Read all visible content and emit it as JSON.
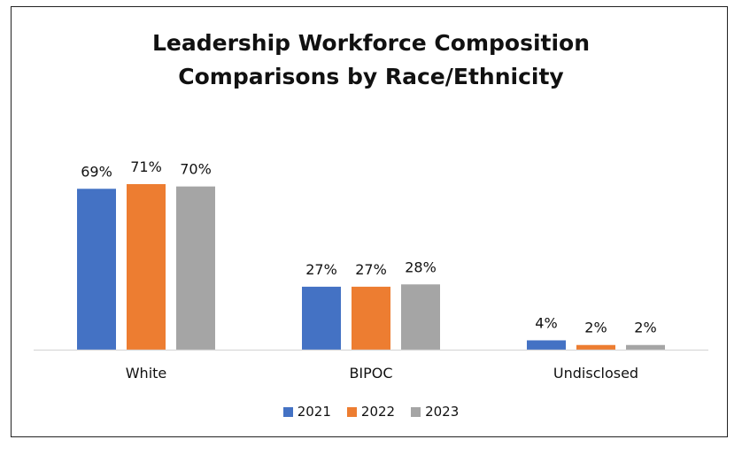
{
  "chart_data": {
    "type": "bar",
    "title": [
      "Leadership Workforce Composition",
      "Comparisons by Race/Ethnicity"
    ],
    "categories": [
      "White",
      "BIPOC",
      "Undisclosed"
    ],
    "series": [
      {
        "name": "2021",
        "color": "#4472C4",
        "values": [
          69,
          27,
          4
        ],
        "labels": [
          "69%",
          "27%",
          "4%"
        ]
      },
      {
        "name": "2022",
        "color": "#ED7D31",
        "values": [
          71,
          27,
          2
        ],
        "labels": [
          "71%",
          "27%",
          "2%"
        ]
      },
      {
        "name": "2023",
        "color": "#A5A5A5",
        "values": [
          70,
          28,
          2
        ],
        "labels": [
          "70%",
          "28%",
          "2%"
        ]
      }
    ],
    "ylim": [
      0,
      71
    ],
    "legend_position": "bottom",
    "grid": false
  }
}
